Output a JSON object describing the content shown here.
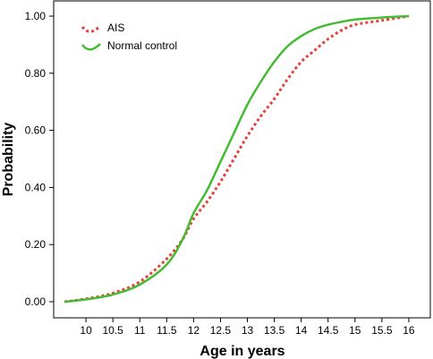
{
  "chart_data": {
    "type": "line",
    "title": "",
    "xlabel": "Age in years",
    "ylabel": "Probability",
    "xlim": [
      9.4,
      16.4
    ],
    "ylim": [
      0,
      1.0
    ],
    "x_ticks": [
      10,
      10.5,
      11,
      11.5,
      12,
      12.5,
      13,
      13.5,
      14,
      14.5,
      15,
      15.5,
      16
    ],
    "x_tick_labels": [
      "10",
      "10.5",
      "11",
      "11.5",
      "12",
      "12.5",
      "13",
      "13.5",
      "14",
      "14.5",
      "15",
      "15.5",
      "16"
    ],
    "y_ticks": [
      0,
      0.2,
      0.4,
      0.6,
      0.8,
      1.0
    ],
    "y_tick_labels": [
      "0.00",
      "0.20",
      "0.40",
      "0.60",
      "0.80",
      "1.00"
    ],
    "grid": false,
    "legend_position": "top-left",
    "series": [
      {
        "name": "AIS",
        "color": "#e8413c",
        "style": "dotted",
        "x": [
          9.6,
          10.0,
          10.5,
          11.0,
          11.5,
          11.8,
          12.0,
          12.25,
          12.5,
          12.75,
          13.0,
          13.25,
          13.5,
          13.75,
          14.0,
          14.25,
          14.5,
          14.75,
          15.0,
          15.5,
          16.0
        ],
        "y": [
          0.0,
          0.01,
          0.03,
          0.07,
          0.15,
          0.22,
          0.29,
          0.35,
          0.42,
          0.5,
          0.58,
          0.65,
          0.71,
          0.78,
          0.84,
          0.88,
          0.92,
          0.95,
          0.97,
          0.985,
          1.0
        ]
      },
      {
        "name": "Normal control",
        "color": "#44bb33",
        "style": "solid",
        "x": [
          9.6,
          10.0,
          10.5,
          11.0,
          11.5,
          11.8,
          12.0,
          12.25,
          12.5,
          12.75,
          13.0,
          13.25,
          13.5,
          13.75,
          14.0,
          14.25,
          14.5,
          14.75,
          15.0,
          15.5,
          16.0
        ],
        "y": [
          0.0,
          0.008,
          0.025,
          0.06,
          0.13,
          0.22,
          0.31,
          0.39,
          0.49,
          0.59,
          0.69,
          0.77,
          0.84,
          0.895,
          0.93,
          0.955,
          0.97,
          0.98,
          0.988,
          0.995,
          1.0
        ]
      }
    ]
  }
}
